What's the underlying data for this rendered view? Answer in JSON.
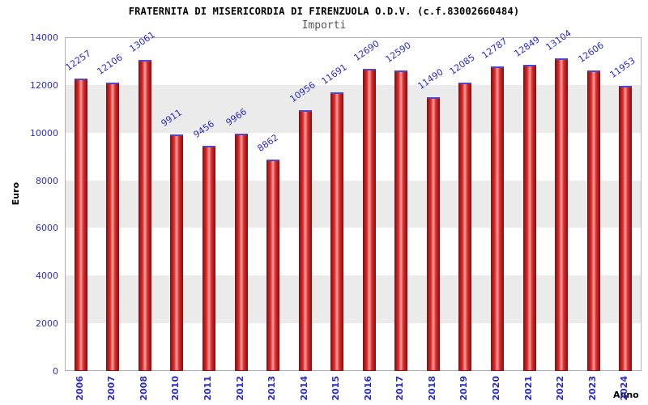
{
  "chart_data": {
    "type": "bar",
    "title": "FRATERNITA DI MISERICORDIA DI FIRENZUOLA O.D.V. (c.f.83002660484)",
    "subtitle": "Importi",
    "xlabel": "Anno",
    "ylabel": "Euro",
    "categories": [
      "2006",
      "2007",
      "2008",
      "2010",
      "2011",
      "2012",
      "2013",
      "2014",
      "2015",
      "2016",
      "2017",
      "2018",
      "2019",
      "2020",
      "2021",
      "2022",
      "2023",
      "2024"
    ],
    "values": [
      12257,
      12106,
      13061,
      9911,
      9456,
      9966,
      8862,
      10956,
      11691,
      12690,
      12590,
      11490,
      12085,
      12787,
      12849,
      13104,
      12606,
      11953
    ],
    "ylim": [
      0,
      14000
    ],
    "ytick_step": 2000,
    "yticks": [
      0,
      2000,
      4000,
      6000,
      8000,
      10000,
      12000,
      14000
    ],
    "grid": "horizontal-bands-alternating",
    "legend": "none",
    "colors": {
      "bar_fill": "#e03030",
      "bar_highlight": "#ffa3a3",
      "bar_edge": "#8f1212",
      "bar_top": "#4a4ad0",
      "label_text": "#2b2bc8",
      "band_gray": "#ebebeb",
      "band_white": "#ffffff",
      "gridline": "#dcdcdc",
      "frame": "#b0b0b0",
      "title_text": "#000000",
      "subtitle_text": "#555555"
    }
  }
}
